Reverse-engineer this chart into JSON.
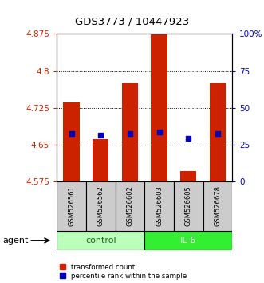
{
  "title": "GDS3773 / 10447923",
  "samples": [
    "GSM526561",
    "GSM526562",
    "GSM526602",
    "GSM526603",
    "GSM526605",
    "GSM526678"
  ],
  "red_values": [
    4.735,
    4.66,
    4.775,
    4.895,
    4.595,
    4.775
  ],
  "blue_values": [
    4.672,
    4.668,
    4.672,
    4.675,
    4.662,
    4.672
  ],
  "y_min": 4.575,
  "y_max": 4.875,
  "y_ticks": [
    4.575,
    4.65,
    4.725,
    4.8,
    4.875
  ],
  "y_tick_labels": [
    "4.575",
    "4.65",
    "4.725",
    "4.8",
    "4.875"
  ],
  "y2_tick_labels": [
    "0",
    "25",
    "50",
    "75",
    "100%"
  ],
  "bar_bottom": 4.575,
  "bar_width": 0.55,
  "red_color": "#cc2200",
  "blue_color": "#0000bb",
  "control_color": "#bbffbb",
  "il6_color": "#33ee33",
  "gray_color": "#cccccc",
  "tick_color_left": "#cc2200",
  "tick_color_right": "#0000bb",
  "legend_red": "transformed count",
  "legend_blue": "percentile rank within the sample"
}
